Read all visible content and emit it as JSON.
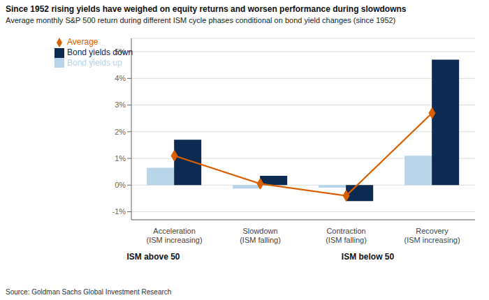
{
  "chart_data": {
    "type": "bar",
    "title": "Since 1952 rising yields have weighed on equity returns and worsen performance during slowdowns",
    "subtitle": "Average monthly S&P 500 return during different ISM cycle phases conditional on bond yield changes (since 1952)",
    "source": "Source: Goldman Sachs Global Investment Research",
    "annotations": [
      "ISM above 50",
      "ISM below 50"
    ],
    "categories": [
      "Acceleration\n(ISM increasing)",
      "Slowdown\n(ISM falling)",
      "Contraction\n(ISM falling)",
      "Recovery\n(ISM increasing)"
    ],
    "series": [
      {
        "name": "Bond yields up",
        "type": "bar",
        "color": "#b8d4e8",
        "values": [
          0.0065,
          -0.0013,
          -0.001,
          0.011
        ]
      },
      {
        "name": "Bond yields down",
        "type": "bar",
        "color": "#0d2b52",
        "values": [
          0.017,
          0.0035,
          -0.006,
          0.047
        ]
      },
      {
        "name": "Average",
        "type": "line",
        "color": "#d95f00",
        "marker": "diamond",
        "values": [
          0.011,
          0.0005,
          -0.004,
          0.027
        ]
      }
    ],
    "ylim": [
      -0.013,
      0.055
    ],
    "yticks": [
      {
        "value": -0.01,
        "label": "-1%"
      },
      {
        "value": 0.0,
        "label": "0%"
      },
      {
        "value": 0.01,
        "label": "1%"
      },
      {
        "value": 0.02,
        "label": "2%"
      },
      {
        "value": 0.03,
        "label": "3%"
      },
      {
        "value": 0.04,
        "label": "4%"
      },
      {
        "value": 0.05,
        "label": "5%"
      }
    ],
    "grid": true,
    "legend": "upper left"
  }
}
